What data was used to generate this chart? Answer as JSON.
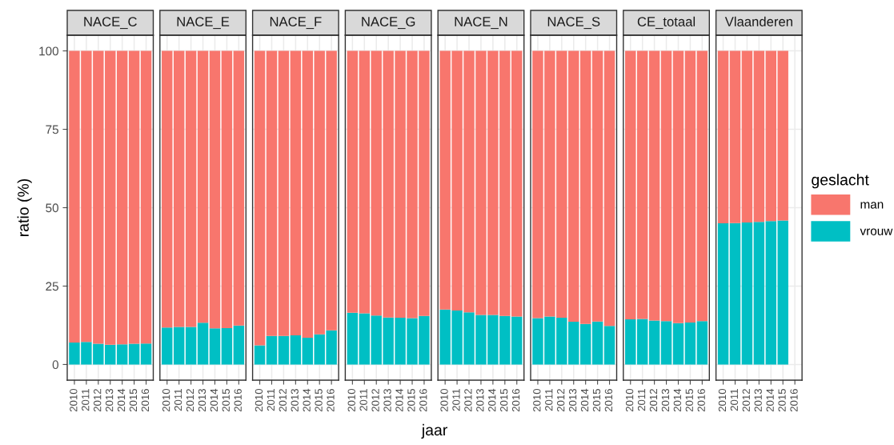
{
  "chart_data": [
    {
      "type": "bar",
      "title": "NACE_C",
      "ylabel": "ratio (%)",
      "legend": "right",
      "legend_title": "geslacht",
      "stacked": true,
      "grid": true,
      "ylim": [
        -5,
        105
      ],
      "yticks": [
        0,
        25,
        50,
        75,
        100
      ],
      "categories": [
        "2010",
        "2011",
        "2012",
        "2013",
        "2014",
        "2015",
        "2016"
      ],
      "series": [
        {
          "name": "vrouw",
          "color": "#00bfc4",
          "values": [
            7.0,
            7.2,
            6.6,
            6.3,
            6.4,
            6.6,
            6.7
          ]
        },
        {
          "name": "man",
          "color": "#f8766d",
          "values": [
            93.0,
            92.8,
            93.4,
            93.7,
            93.6,
            93.4,
            93.3
          ]
        }
      ]
    },
    {
      "type": "bar",
      "title": "NACE_E",
      "stacked": true,
      "grid": true,
      "tick_labels": "x",
      "ylim": [
        -5,
        105
      ],
      "yticks": [
        0,
        25,
        50,
        75,
        100
      ],
      "categories": [
        "2010",
        "2011",
        "2012",
        "2013",
        "2014",
        "2015",
        "2016"
      ],
      "series": [
        {
          "name": "vrouw",
          "color": "#00bfc4",
          "values": [
            11.8,
            12.0,
            12.0,
            13.3,
            11.5,
            11.6,
            12.4
          ]
        },
        {
          "name": "man",
          "color": "#f8766d",
          "values": [
            88.2,
            88.0,
            88.0,
            86.7,
            88.5,
            88.4,
            87.6
          ]
        }
      ]
    },
    {
      "type": "bar",
      "title": "NACE_F",
      "stacked": true,
      "grid": true,
      "tick_labels": "x",
      "ylim": [
        -5,
        105
      ],
      "yticks": [
        0,
        25,
        50,
        75,
        100
      ],
      "categories": [
        "2010",
        "2011",
        "2012",
        "2013",
        "2014",
        "2015",
        "2016"
      ],
      "series": [
        {
          "name": "vrouw",
          "color": "#00bfc4",
          "values": [
            6.1,
            9.1,
            9.1,
            9.3,
            8.5,
            9.6,
            10.9
          ]
        },
        {
          "name": "man",
          "color": "#f8766d",
          "values": [
            93.9,
            90.9,
            90.9,
            90.7,
            91.5,
            90.4,
            89.1
          ]
        }
      ]
    },
    {
      "type": "bar",
      "title": "NACE_G",
      "xlabel": "jaar",
      "stacked": true,
      "grid": true,
      "tick_labels": "x",
      "ylim": [
        -5,
        105
      ],
      "yticks": [
        0,
        25,
        50,
        75,
        100
      ],
      "categories": [
        "2010",
        "2011",
        "2012",
        "2013",
        "2014",
        "2015",
        "2016"
      ],
      "series": [
        {
          "name": "vrouw",
          "color": "#00bfc4",
          "values": [
            16.5,
            16.3,
            15.6,
            15.0,
            14.9,
            14.8,
            15.5
          ]
        },
        {
          "name": "man",
          "color": "#f8766d",
          "values": [
            83.5,
            83.7,
            84.4,
            85.0,
            85.1,
            85.2,
            84.5
          ]
        }
      ]
    },
    {
      "type": "bar",
      "title": "NACE_N",
      "stacked": true,
      "grid": true,
      "tick_labels": "x",
      "ylim": [
        -5,
        105
      ],
      "yticks": [
        0,
        25,
        50,
        75,
        100
      ],
      "categories": [
        "2010",
        "2011",
        "2012",
        "2013",
        "2014",
        "2015",
        "2016"
      ],
      "series": [
        {
          "name": "vrouw",
          "color": "#00bfc4",
          "values": [
            17.5,
            17.2,
            16.6,
            15.8,
            15.8,
            15.5,
            15.3
          ]
        },
        {
          "name": "man",
          "color": "#f8766d",
          "values": [
            82.5,
            82.8,
            83.4,
            84.2,
            84.2,
            84.5,
            84.7
          ]
        }
      ]
    },
    {
      "type": "bar",
      "title": "NACE_S",
      "stacked": true,
      "grid": true,
      "tick_labels": "x",
      "ylim": [
        -5,
        105
      ],
      "yticks": [
        0,
        25,
        50,
        75,
        100
      ],
      "categories": [
        "2010",
        "2011",
        "2012",
        "2013",
        "2014",
        "2015",
        "2016"
      ],
      "series": [
        {
          "name": "vrouw",
          "color": "#00bfc4",
          "values": [
            14.8,
            15.3,
            14.9,
            13.6,
            12.9,
            13.7,
            12.3
          ]
        },
        {
          "name": "man",
          "color": "#f8766d",
          "values": [
            85.2,
            84.7,
            85.1,
            86.4,
            87.1,
            86.3,
            87.7
          ]
        }
      ]
    },
    {
      "type": "bar",
      "title": "CE_totaal",
      "stacked": true,
      "grid": true,
      "tick_labels": "x",
      "ylim": [
        -5,
        105
      ],
      "yticks": [
        0,
        25,
        50,
        75,
        100
      ],
      "categories": [
        "2010",
        "2011",
        "2012",
        "2013",
        "2014",
        "2015",
        "2016"
      ],
      "series": [
        {
          "name": "vrouw",
          "color": "#00bfc4",
          "values": [
            14.4,
            14.5,
            14.0,
            13.8,
            13.2,
            13.4,
            13.8
          ]
        },
        {
          "name": "man",
          "color": "#f8766d",
          "values": [
            85.6,
            85.5,
            86.0,
            86.2,
            86.8,
            86.6,
            86.2
          ]
        }
      ]
    },
    {
      "type": "bar",
      "title": "Vlaanderen",
      "stacked": true,
      "grid": true,
      "tick_labels": "x",
      "ylim": [
        -5,
        105
      ],
      "yticks": [
        0,
        25,
        50,
        75,
        100
      ],
      "categories": [
        "2010",
        "2011",
        "2012",
        "2013",
        "2014",
        "2015",
        "2016"
      ],
      "series": [
        {
          "name": "vrouw",
          "color": "#00bfc4",
          "values": [
            45.0,
            45.1,
            45.3,
            45.5,
            45.7,
            45.9,
            null
          ]
        },
        {
          "name": "man",
          "color": "#f8766d",
          "values": [
            55.0,
            54.9,
            54.7,
            54.5,
            54.3,
            54.1,
            null
          ]
        }
      ]
    }
  ]
}
